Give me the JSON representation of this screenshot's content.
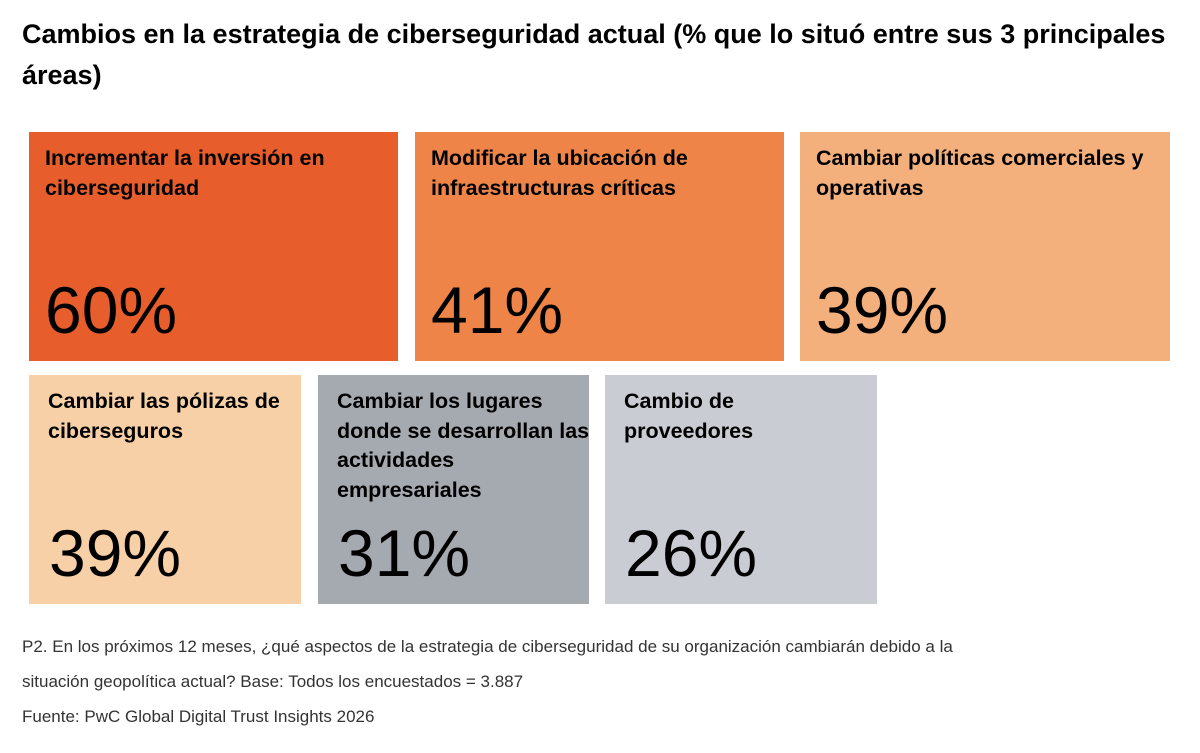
{
  "chart_data": {
    "type": "table",
    "title": "Cambios en la estrategia de ciberseguridad actual (% que lo situó entre sus 3 principales áreas)",
    "unit": "%",
    "items": [
      {
        "label": "Incrementar la inversión en ciberseguridad",
        "value": 60,
        "display": "60%",
        "color": "#E85D2C"
      },
      {
        "label": "Modificar la ubicación de infraestructuras críticas",
        "value": 41,
        "display": "41%",
        "color": "#EE8448"
      },
      {
        "label": "Cambiar políticas comerciales y operativas",
        "value": 39,
        "display": "39%",
        "color": "#F3B07C"
      },
      {
        "label": "Cambiar las pólizas de ciberseguros",
        "value": 39,
        "display": "39%",
        "color": "#F8D0A8"
      },
      {
        "label": "Cambiar los lugares donde se desarrollan las actividades empresariales",
        "value": 31,
        "display": "31%",
        "color": "#A5AAB1"
      },
      {
        "label": "Cambio de proveedores",
        "value": 26,
        "display": "26%",
        "color": "#C9CDD3"
      }
    ]
  },
  "footnote": {
    "line1": "P2. En los próximos 12 meses, ¿qué aspectos de la estrategia de ciberseguridad de su organización cambiarán debido a la",
    "line2": "situación geopolítica actual? Base: Todos los encuestados = 3.887",
    "source": "Fuente: PwC Global Digital Trust Insights 2026"
  }
}
